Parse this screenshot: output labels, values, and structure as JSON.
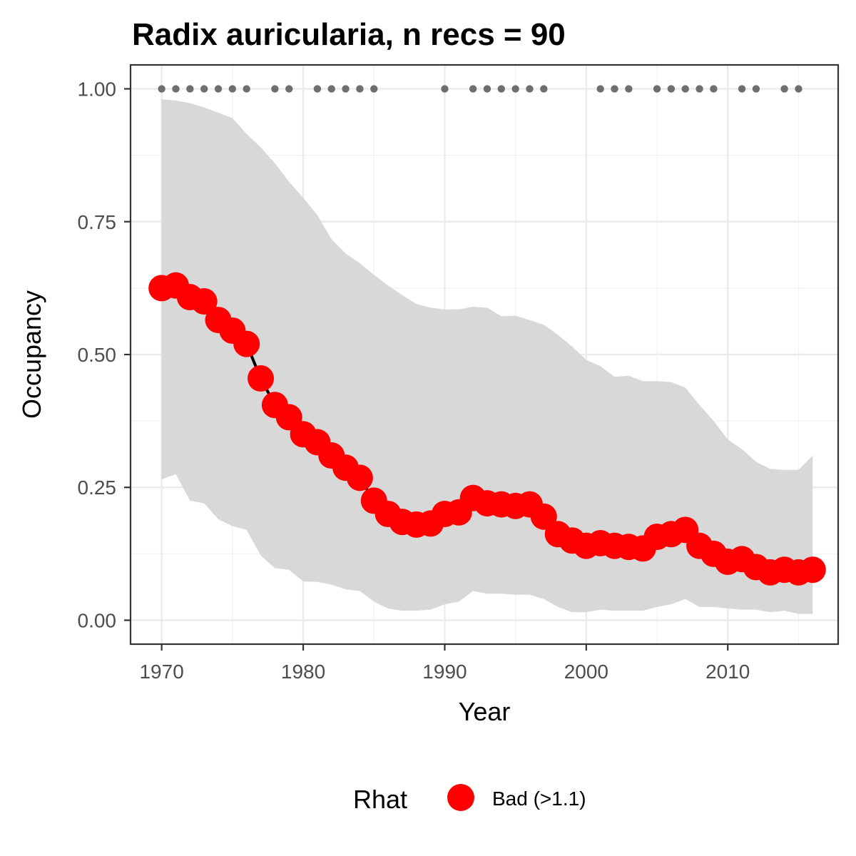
{
  "chart_data": {
    "type": "line",
    "title": "Radix auricularia, n recs = 90",
    "xlabel": "Year",
    "ylabel": "Occupancy",
    "xlim": [
      1967.8,
      2017.8
    ],
    "ylim": [
      -0.045,
      1.045
    ],
    "x_ticks": [
      1970,
      1980,
      1990,
      2000,
      2010
    ],
    "x_tick_labels": [
      "1970",
      "1980",
      "1990",
      "2000",
      "2010"
    ],
    "y_ticks": [
      0,
      0.25,
      0.5,
      0.75,
      1
    ],
    "y_tick_labels": [
      "0.00",
      "0.25",
      "0.50",
      "0.75",
      "1.00"
    ],
    "grid": true,
    "legend": {
      "title": "Rhat",
      "position": "bottom",
      "entries": [
        {
          "label": "Bad (>1.1)",
          "color": "#ff0000"
        }
      ]
    },
    "colors": {
      "points": "#ff0000",
      "line": "#000000",
      "ribbon": "#d6d6d6",
      "records": "#6e6e6e"
    },
    "x": [
      1970,
      1971,
      1972,
      1973,
      1974,
      1975,
      1976,
      1977,
      1978,
      1979,
      1980,
      1981,
      1982,
      1983,
      1984,
      1985,
      1986,
      1987,
      1988,
      1989,
      1990,
      1991,
      1992,
      1993,
      1994,
      1995,
      1996,
      1997,
      1998,
      1999,
      2000,
      2001,
      2002,
      2003,
      2004,
      2005,
      2006,
      2007,
      2008,
      2009,
      2010,
      2011,
      2012,
      2013,
      2014,
      2015,
      2016
    ],
    "series": [
      {
        "values": [
          0.625,
          0.63,
          0.608,
          0.6,
          0.565,
          0.545,
          0.52,
          0.455,
          0.405,
          0.382,
          0.35,
          0.335,
          0.31,
          0.287,
          0.268,
          0.225,
          0.2,
          0.185,
          0.18,
          0.182,
          0.2,
          0.203,
          0.23,
          0.22,
          0.218,
          0.215,
          0.218,
          0.195,
          0.162,
          0.15,
          0.14,
          0.145,
          0.14,
          0.138,
          0.135,
          0.157,
          0.162,
          0.17,
          0.14,
          0.125,
          0.11,
          0.115,
          0.1,
          0.09,
          0.095,
          0.09,
          0.095
        ],
        "lower": [
          0.265,
          0.275,
          0.225,
          0.22,
          0.19,
          0.177,
          0.17,
          0.122,
          0.098,
          0.095,
          0.073,
          0.072,
          0.067,
          0.058,
          0.055,
          0.035,
          0.022,
          0.018,
          0.018,
          0.02,
          0.03,
          0.035,
          0.055,
          0.05,
          0.05,
          0.048,
          0.048,
          0.04,
          0.025,
          0.015,
          0.015,
          0.02,
          0.018,
          0.018,
          0.018,
          0.025,
          0.03,
          0.04,
          0.025,
          0.025,
          0.022,
          0.02,
          0.02,
          0.015,
          0.018,
          0.012,
          0.012
        ],
        "upper": [
          0.98,
          0.978,
          0.973,
          0.965,
          0.955,
          0.945,
          0.915,
          0.89,
          0.86,
          0.825,
          0.795,
          0.762,
          0.717,
          0.69,
          0.672,
          0.65,
          0.63,
          0.612,
          0.595,
          0.588,
          0.585,
          0.585,
          0.59,
          0.588,
          0.572,
          0.573,
          0.565,
          0.556,
          0.537,
          0.515,
          0.49,
          0.478,
          0.458,
          0.46,
          0.45,
          0.45,
          0.448,
          0.438,
          0.405,
          0.375,
          0.34,
          0.322,
          0.298,
          0.285,
          0.283,
          0.283,
          0.31
        ]
      }
    ],
    "record_years": [
      1970,
      1971,
      1972,
      1973,
      1974,
      1975,
      1976,
      1978,
      1979,
      1981,
      1982,
      1983,
      1984,
      1985,
      1990,
      1992,
      1993,
      1994,
      1995,
      1996,
      1997,
      2001,
      2002,
      2003,
      2005,
      2006,
      2007,
      2008,
      2009,
      2011,
      2012,
      2014,
      2015
    ],
    "record_value": 1.0
  }
}
